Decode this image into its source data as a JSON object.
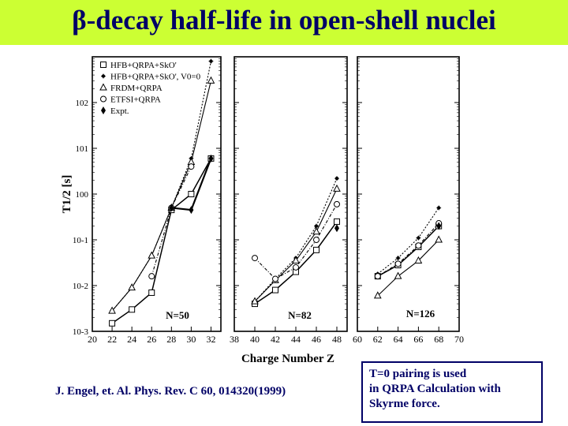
{
  "slide": {
    "title": "β-decay half-life in open-shell nuclei",
    "citation": "J. Engel, et. Al. Phys. Rev. C 60, 014320(1999)",
    "note_lines": [
      "T=0 pairing is used",
      "in QRPA Calculation with",
      "Skyrme force."
    ],
    "colors": {
      "title_bar": "#ccff33",
      "text": "#000066"
    }
  },
  "chart_data": {
    "type": "scatter",
    "ylabel": "T1/2 [s]",
    "xlabel": "Charge Number Z",
    "y_scale": "log",
    "ylim": [
      0.001,
      1000
    ],
    "y_ticks": [
      "10-3",
      "10-2",
      "10-1",
      "100",
      "101",
      "102"
    ],
    "legend": [
      {
        "name": "HFB+QRPA+SkO'",
        "marker": "square"
      },
      {
        "name": "HFB+QRPA+SkO', V0=0",
        "marker": "star"
      },
      {
        "name": "FRDM+QRPA",
        "marker": "triangle"
      },
      {
        "name": "ETFSI+QRPA",
        "marker": "circle"
      },
      {
        "name": "Expt.",
        "marker": "diamond"
      }
    ],
    "panels": [
      {
        "label": "N=50",
        "xlim": [
          20,
          33
        ],
        "x_ticks": [
          "20",
          "22",
          "24",
          "26",
          "28",
          "30",
          "32"
        ],
        "series": [
          {
            "marker": "square",
            "x": [
              22,
              24,
              26,
              28,
              30,
              32
            ],
            "y": [
              0.0015,
              0.003,
              0.007,
              0.45,
              1.0,
              6.0
            ]
          },
          {
            "marker": "star",
            "x": [
              22,
              24,
              26,
              28,
              30,
              32
            ],
            "y": [
              0.0028,
              0.009,
              0.045,
              0.5,
              6.0,
              800
            ]
          },
          {
            "marker": "triangle",
            "x": [
              22,
              24,
              26,
              28,
              30,
              32
            ],
            "y": [
              0.0028,
              0.009,
              0.045,
              0.5,
              5.0,
              300
            ]
          },
          {
            "marker": "circle",
            "x": [
              26,
              28,
              30
            ],
            "y": [
              0.016,
              0.5,
              4.0
            ]
          },
          {
            "marker": "diamond",
            "x": [
              28,
              30,
              32
            ],
            "y": [
              0.5,
              0.45,
              6.0
            ]
          }
        ]
      },
      {
        "label": "N=82",
        "xlim": [
          38,
          49
        ],
        "x_ticks": [
          "38",
          "40",
          "42",
          "44",
          "46",
          "48"
        ],
        "series": [
          {
            "marker": "square",
            "x": [
              40,
              42,
              44,
              46,
              48
            ],
            "y": [
              0.004,
              0.008,
              0.02,
              0.06,
              0.25
            ]
          },
          {
            "marker": "star",
            "x": [
              40,
              42,
              44,
              46,
              48
            ],
            "y": [
              0.0045,
              0.014,
              0.04,
              0.2,
              2.2
            ]
          },
          {
            "marker": "triangle",
            "x": [
              40,
              42,
              44,
              46,
              48
            ],
            "y": [
              0.0045,
              0.013,
              0.035,
              0.15,
              1.3
            ]
          },
          {
            "marker": "circle",
            "x": [
              40,
              42,
              44,
              46,
              48
            ],
            "y": [
              0.04,
              0.014,
              0.025,
              0.1,
              0.6
            ]
          },
          {
            "marker": "diamond",
            "x": [
              48
            ],
            "y": [
              0.18
            ]
          }
        ]
      },
      {
        "label": "N=126",
        "xlim": [
          60,
          70
        ],
        "x_ticks": [
          "60",
          "62",
          "64",
          "66",
          "68",
          "70"
        ],
        "series": [
          {
            "marker": "square",
            "x": [
              62,
              64,
              66,
              68
            ],
            "y": [
              0.016,
              0.028,
              0.07,
              0.2
            ]
          },
          {
            "marker": "star",
            "x": [
              62,
              64,
              66,
              68
            ],
            "y": [
              0.018,
              0.04,
              0.11,
              0.5
            ]
          },
          {
            "marker": "triangle",
            "x": [
              62,
              64,
              66,
              68
            ],
            "y": [
              0.006,
              0.016,
              0.035,
              0.1
            ]
          },
          {
            "marker": "circle",
            "x": [
              62,
              64,
              66,
              68
            ],
            "y": [
              0.016,
              0.03,
              0.075,
              0.23
            ]
          },
          {
            "marker": "diamond",
            "x": [
              68
            ],
            "y": [
              0.2
            ]
          }
        ]
      }
    ]
  }
}
